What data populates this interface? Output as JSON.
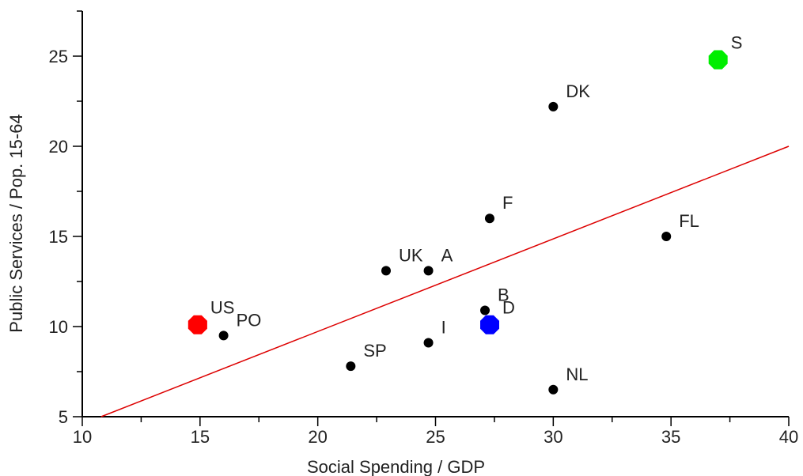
{
  "chart_data": {
    "type": "scatter",
    "title": "",
    "xlabel": "Social Spending / GDP",
    "ylabel": "Public Services / Pop. 15-64",
    "xlim": [
      10,
      40
    ],
    "ylim": [
      5,
      27.5
    ],
    "xticks": [
      "10",
      "15",
      "20",
      "25",
      "30",
      "35",
      "40"
    ],
    "yticks": [
      "5",
      "10",
      "15",
      "20",
      "25"
    ],
    "grid": false,
    "points": [
      {
        "label": "US",
        "x": 14.9,
        "y": 10.1,
        "color": "#ff0000",
        "size": "large"
      },
      {
        "label": "PO",
        "x": 16.0,
        "y": 9.5,
        "color": "#000000",
        "size": "small"
      },
      {
        "label": "SP",
        "x": 21.4,
        "y": 7.8,
        "color": "#000000",
        "size": "small"
      },
      {
        "label": "UK",
        "x": 22.9,
        "y": 13.1,
        "color": "#000000",
        "size": "small"
      },
      {
        "label": "A",
        "x": 24.7,
        "y": 13.1,
        "color": "#000000",
        "size": "small"
      },
      {
        "label": "I",
        "x": 24.7,
        "y": 9.1,
        "color": "#000000",
        "size": "small"
      },
      {
        "label": "B",
        "x": 27.1,
        "y": 10.9,
        "color": "#000000",
        "size": "small"
      },
      {
        "label": "D",
        "x": 27.3,
        "y": 10.1,
        "color": "#0000ff",
        "size": "large"
      },
      {
        "label": "F",
        "x": 27.3,
        "y": 16.0,
        "color": "#000000",
        "size": "small"
      },
      {
        "label": "DK",
        "x": 30.0,
        "y": 22.2,
        "color": "#000000",
        "size": "small"
      },
      {
        "label": "NL",
        "x": 30.0,
        "y": 6.5,
        "color": "#000000",
        "size": "small"
      },
      {
        "label": "FL",
        "x": 34.8,
        "y": 15.0,
        "color": "#000000",
        "size": "small"
      },
      {
        "label": "S",
        "x": 37.0,
        "y": 24.8,
        "color": "#00ee00",
        "size": "large"
      }
    ],
    "trendline": {
      "x": [
        10.8,
        40
      ],
      "y": [
        5.0,
        20.0
      ],
      "color": "#dd0000"
    }
  }
}
